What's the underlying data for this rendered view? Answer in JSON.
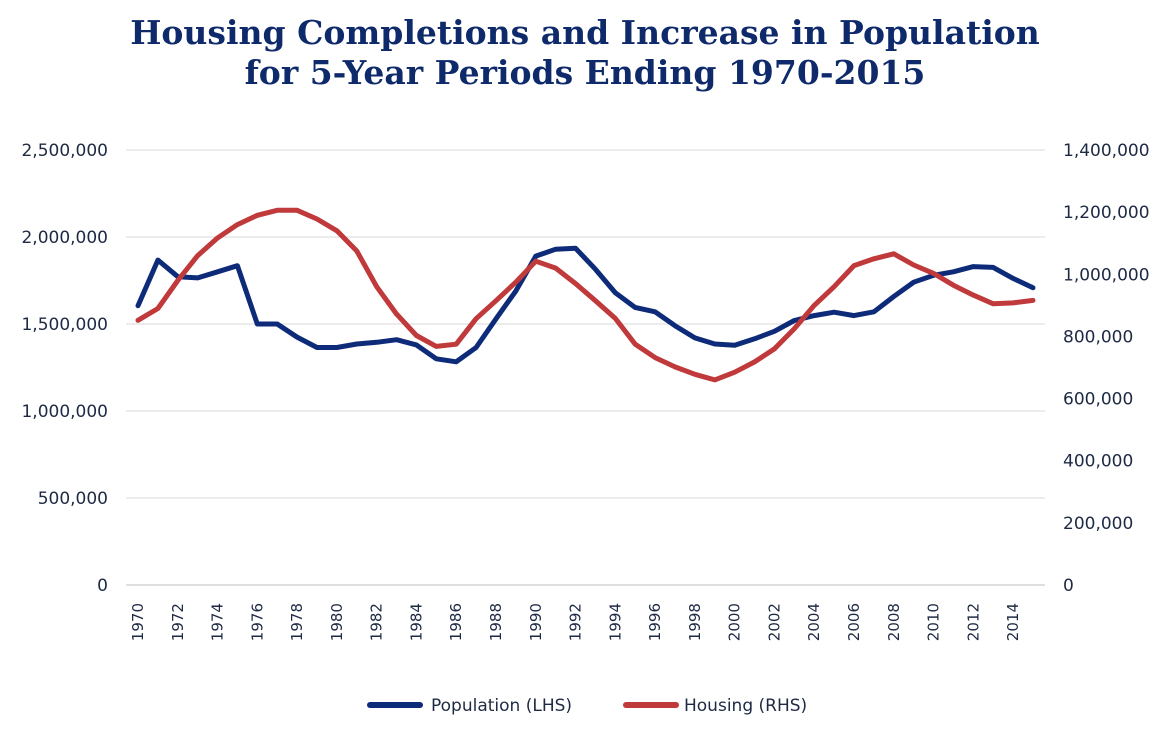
{
  "chart_data": {
    "type": "line",
    "title": "Housing Completions and Increase in Population",
    "subtitle": "for 5-Year Periods Ending 1970-2015",
    "x": [
      1970,
      1971,
      1972,
      1973,
      1974,
      1975,
      1976,
      1977,
      1978,
      1979,
      1980,
      1981,
      1982,
      1983,
      1984,
      1985,
      1986,
      1987,
      1988,
      1989,
      1990,
      1991,
      1992,
      1993,
      1994,
      1995,
      1996,
      1997,
      1998,
      1999,
      2000,
      2001,
      2002,
      2003,
      2004,
      2005,
      2006,
      2007,
      2008,
      2009,
      2010,
      2011,
      2012,
      2013,
      2014,
      2015
    ],
    "x_tick_labels": [
      "1970",
      "1972",
      "1974",
      "1976",
      "1978",
      "1980",
      "1982",
      "1984",
      "1986",
      "1988",
      "1990",
      "1992",
      "1994",
      "1996",
      "1998",
      "2000",
      "2002",
      "2004",
      "2006",
      "2008",
      "2010",
      "2012",
      "2014"
    ],
    "y_left": {
      "min": 0,
      "max": 2500000,
      "ticks": [
        0,
        500000,
        1000000,
        1500000,
        2000000,
        2500000
      ],
      "tick_labels": [
        "0",
        "500,000",
        "1,000,000",
        "1,500,000",
        "2,000,000",
        "2,500,000"
      ]
    },
    "y_right": {
      "min": 0,
      "max": 1400000,
      "ticks": [
        0,
        200000,
        400000,
        600000,
        800000,
        1000000,
        1200000,
        1400000
      ],
      "tick_labels": [
        "0",
        "200,000",
        "400,000",
        "600,000",
        "800,000",
        "1,000,000",
        "1,200,000",
        "1,400,000"
      ]
    },
    "grid": true,
    "legend_position": "bottom-center",
    "series": [
      {
        "name": "Population (LHS)",
        "axis": "left",
        "color": "#0d2b78",
        "values": [
          1605000,
          1867000,
          1772000,
          1765000,
          1800000,
          1835000,
          1500000,
          1500000,
          1425000,
          1365000,
          1365000,
          1385000,
          1395000,
          1410000,
          1380000,
          1300000,
          1283000,
          1365000,
          1530000,
          1690000,
          1890000,
          1930000,
          1935000,
          1815000,
          1680000,
          1595000,
          1570000,
          1490000,
          1420000,
          1385000,
          1378000,
          1415000,
          1458000,
          1520000,
          1548000,
          1568000,
          1548000,
          1570000,
          1658000,
          1740000,
          1780000,
          1800000,
          1830000,
          1825000,
          1762000,
          1708000
        ]
      },
      {
        "name": "Housing (RHS)",
        "axis": "right",
        "color": "#c0393b",
        "values": [
          852000,
          890000,
          980000,
          1060000,
          1117000,
          1160000,
          1190000,
          1206000,
          1206000,
          1178000,
          1140000,
          1075000,
          960000,
          872000,
          803000,
          768000,
          775000,
          857000,
          915000,
          975000,
          1042000,
          1020000,
          970000,
          915000,
          858000,
          775000,
          732000,
          702000,
          678000,
          660000,
          685000,
          718000,
          760000,
          825000,
          900000,
          960000,
          1028000,
          1050000,
          1066000,
          1030000,
          1003000,
          965000,
          933000,
          905000,
          908000,
          916000
        ]
      }
    ]
  }
}
